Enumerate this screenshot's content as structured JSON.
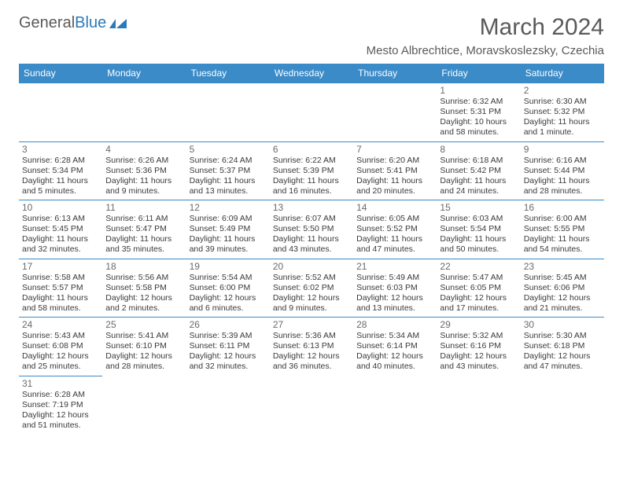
{
  "logo": {
    "part1": "General",
    "part2": "Blue"
  },
  "title": "March 2024",
  "subtitle": "Mesto Albrechtice, Moravskoslezsky, Czechia",
  "header_bg": "#3b8bc8",
  "header_fg": "#ffffff",
  "border_color": "#3b8bc8",
  "dayname_fontsize": 12,
  "cell_fontsize": 10.5,
  "days": [
    "Sunday",
    "Monday",
    "Tuesday",
    "Wednesday",
    "Thursday",
    "Friday",
    "Saturday"
  ],
  "weeks": [
    [
      null,
      null,
      null,
      null,
      null,
      {
        "n": "1",
        "sr": "Sunrise: 6:32 AM",
        "ss": "Sunset: 5:31 PM",
        "d1": "Daylight: 10 hours",
        "d2": "and 58 minutes."
      },
      {
        "n": "2",
        "sr": "Sunrise: 6:30 AM",
        "ss": "Sunset: 5:32 PM",
        "d1": "Daylight: 11 hours",
        "d2": "and 1 minute."
      }
    ],
    [
      {
        "n": "3",
        "sr": "Sunrise: 6:28 AM",
        "ss": "Sunset: 5:34 PM",
        "d1": "Daylight: 11 hours",
        "d2": "and 5 minutes."
      },
      {
        "n": "4",
        "sr": "Sunrise: 6:26 AM",
        "ss": "Sunset: 5:36 PM",
        "d1": "Daylight: 11 hours",
        "d2": "and 9 minutes."
      },
      {
        "n": "5",
        "sr": "Sunrise: 6:24 AM",
        "ss": "Sunset: 5:37 PM",
        "d1": "Daylight: 11 hours",
        "d2": "and 13 minutes."
      },
      {
        "n": "6",
        "sr": "Sunrise: 6:22 AM",
        "ss": "Sunset: 5:39 PM",
        "d1": "Daylight: 11 hours",
        "d2": "and 16 minutes."
      },
      {
        "n": "7",
        "sr": "Sunrise: 6:20 AM",
        "ss": "Sunset: 5:41 PM",
        "d1": "Daylight: 11 hours",
        "d2": "and 20 minutes."
      },
      {
        "n": "8",
        "sr": "Sunrise: 6:18 AM",
        "ss": "Sunset: 5:42 PM",
        "d1": "Daylight: 11 hours",
        "d2": "and 24 minutes."
      },
      {
        "n": "9",
        "sr": "Sunrise: 6:16 AM",
        "ss": "Sunset: 5:44 PM",
        "d1": "Daylight: 11 hours",
        "d2": "and 28 minutes."
      }
    ],
    [
      {
        "n": "10",
        "sr": "Sunrise: 6:13 AM",
        "ss": "Sunset: 5:45 PM",
        "d1": "Daylight: 11 hours",
        "d2": "and 32 minutes."
      },
      {
        "n": "11",
        "sr": "Sunrise: 6:11 AM",
        "ss": "Sunset: 5:47 PM",
        "d1": "Daylight: 11 hours",
        "d2": "and 35 minutes."
      },
      {
        "n": "12",
        "sr": "Sunrise: 6:09 AM",
        "ss": "Sunset: 5:49 PM",
        "d1": "Daylight: 11 hours",
        "d2": "and 39 minutes."
      },
      {
        "n": "13",
        "sr": "Sunrise: 6:07 AM",
        "ss": "Sunset: 5:50 PM",
        "d1": "Daylight: 11 hours",
        "d2": "and 43 minutes."
      },
      {
        "n": "14",
        "sr": "Sunrise: 6:05 AM",
        "ss": "Sunset: 5:52 PM",
        "d1": "Daylight: 11 hours",
        "d2": "and 47 minutes."
      },
      {
        "n": "15",
        "sr": "Sunrise: 6:03 AM",
        "ss": "Sunset: 5:54 PM",
        "d1": "Daylight: 11 hours",
        "d2": "and 50 minutes."
      },
      {
        "n": "16",
        "sr": "Sunrise: 6:00 AM",
        "ss": "Sunset: 5:55 PM",
        "d1": "Daylight: 11 hours",
        "d2": "and 54 minutes."
      }
    ],
    [
      {
        "n": "17",
        "sr": "Sunrise: 5:58 AM",
        "ss": "Sunset: 5:57 PM",
        "d1": "Daylight: 11 hours",
        "d2": "and 58 minutes."
      },
      {
        "n": "18",
        "sr": "Sunrise: 5:56 AM",
        "ss": "Sunset: 5:58 PM",
        "d1": "Daylight: 12 hours",
        "d2": "and 2 minutes."
      },
      {
        "n": "19",
        "sr": "Sunrise: 5:54 AM",
        "ss": "Sunset: 6:00 PM",
        "d1": "Daylight: 12 hours",
        "d2": "and 6 minutes."
      },
      {
        "n": "20",
        "sr": "Sunrise: 5:52 AM",
        "ss": "Sunset: 6:02 PM",
        "d1": "Daylight: 12 hours",
        "d2": "and 9 minutes."
      },
      {
        "n": "21",
        "sr": "Sunrise: 5:49 AM",
        "ss": "Sunset: 6:03 PM",
        "d1": "Daylight: 12 hours",
        "d2": "and 13 minutes."
      },
      {
        "n": "22",
        "sr": "Sunrise: 5:47 AM",
        "ss": "Sunset: 6:05 PM",
        "d1": "Daylight: 12 hours",
        "d2": "and 17 minutes."
      },
      {
        "n": "23",
        "sr": "Sunrise: 5:45 AM",
        "ss": "Sunset: 6:06 PM",
        "d1": "Daylight: 12 hours",
        "d2": "and 21 minutes."
      }
    ],
    [
      {
        "n": "24",
        "sr": "Sunrise: 5:43 AM",
        "ss": "Sunset: 6:08 PM",
        "d1": "Daylight: 12 hours",
        "d2": "and 25 minutes."
      },
      {
        "n": "25",
        "sr": "Sunrise: 5:41 AM",
        "ss": "Sunset: 6:10 PM",
        "d1": "Daylight: 12 hours",
        "d2": "and 28 minutes."
      },
      {
        "n": "26",
        "sr": "Sunrise: 5:39 AM",
        "ss": "Sunset: 6:11 PM",
        "d1": "Daylight: 12 hours",
        "d2": "and 32 minutes."
      },
      {
        "n": "27",
        "sr": "Sunrise: 5:36 AM",
        "ss": "Sunset: 6:13 PM",
        "d1": "Daylight: 12 hours",
        "d2": "and 36 minutes."
      },
      {
        "n": "28",
        "sr": "Sunrise: 5:34 AM",
        "ss": "Sunset: 6:14 PM",
        "d1": "Daylight: 12 hours",
        "d2": "and 40 minutes."
      },
      {
        "n": "29",
        "sr": "Sunrise: 5:32 AM",
        "ss": "Sunset: 6:16 PM",
        "d1": "Daylight: 12 hours",
        "d2": "and 43 minutes."
      },
      {
        "n": "30",
        "sr": "Sunrise: 5:30 AM",
        "ss": "Sunset: 6:18 PM",
        "d1": "Daylight: 12 hours",
        "d2": "and 47 minutes."
      }
    ],
    [
      {
        "n": "31",
        "sr": "Sunrise: 6:28 AM",
        "ss": "Sunset: 7:19 PM",
        "d1": "Daylight: 12 hours",
        "d2": "and 51 minutes."
      },
      null,
      null,
      null,
      null,
      null,
      null
    ]
  ]
}
